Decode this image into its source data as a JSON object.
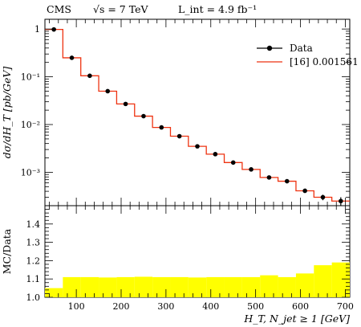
{
  "header": {
    "experiment": "CMS",
    "energy": "√s = 7 TeV",
    "luminosity": "L_int = 4.9 fb⁻¹"
  },
  "chart_data": [
    {
      "type": "line",
      "panel": "main",
      "ylabel": "dσ/dH_T [pb/GeV]",
      "yscale": "log",
      "ylim": [
        0.0002,
        1.6
      ],
      "xlim": [
        30,
        710
      ],
      "ytick_labels": [
        "1",
        "10⁻¹",
        "10⁻²",
        "10⁻³"
      ],
      "legend_placement": "top-right",
      "bin_edges": [
        30,
        70,
        110,
        150,
        190,
        230,
        270,
        310,
        350,
        390,
        430,
        470,
        510,
        550,
        590,
        630,
        670,
        710
      ],
      "series": [
        {
          "name": "Data",
          "style": "points-with-errors",
          "color": "#000000",
          "x": [
            50,
            90,
            130,
            170,
            210,
            250,
            290,
            330,
            370,
            410,
            450,
            490,
            530,
            570,
            610,
            650,
            690
          ],
          "y": [
            0.98,
            0.25,
            0.105,
            0.05,
            0.027,
            0.015,
            0.0087,
            0.0057,
            0.0035,
            0.0024,
            0.0016,
            0.00115,
            0.00078,
            0.00065,
            0.00041,
            0.0003,
            0.00025
          ],
          "yerr": [
            0.03,
            0.008,
            0.004,
            0.002,
            0.001,
            0.0006,
            0.0004,
            0.0003,
            0.0002,
            0.00015,
            0.0001,
            8e-05,
            6e-05,
            5e-05,
            4e-05,
            4e-05,
            5e-05
          ]
        },
        {
          "name": "[16] 0.001561",
          "style": "step",
          "color": "#ee3311",
          "y": [
            0.98,
            0.25,
            0.105,
            0.05,
            0.027,
            0.015,
            0.0087,
            0.0057,
            0.0035,
            0.0024,
            0.0016,
            0.00115,
            0.00078,
            0.00065,
            0.00041,
            0.0003,
            0.00025
          ]
        }
      ]
    },
    {
      "type": "area",
      "panel": "ratio",
      "ylabel": "MC/Data",
      "xlabel": "H_T, N_jet ≥ 1 [GeV]",
      "ylim": [
        1.0,
        1.5
      ],
      "xlim": [
        30,
        710
      ],
      "yticks": [
        "1.0",
        "1.1",
        "1.2",
        "1.3",
        "1.4"
      ],
      "xticks": [
        "100",
        "200",
        "300",
        "400",
        "500",
        "600",
        "700"
      ],
      "band_color": "#ffff00",
      "bin_edges": [
        30,
        70,
        110,
        150,
        190,
        230,
        270,
        310,
        350,
        390,
        430,
        470,
        510,
        550,
        590,
        630,
        670,
        710
      ],
      "upper": [
        1.05,
        1.11,
        1.11,
        1.108,
        1.11,
        1.112,
        1.11,
        1.11,
        1.108,
        1.11,
        1.11,
        1.11,
        1.12,
        1.11,
        1.13,
        1.175,
        1.19
      ],
      "lower": [
        1.0,
        1.0,
        1.0,
        1.0,
        1.0,
        1.0,
        1.0,
        1.0,
        1.0,
        1.0,
        1.0,
        1.0,
        1.0,
        1.0,
        1.0,
        1.0,
        1.0
      ]
    }
  ]
}
